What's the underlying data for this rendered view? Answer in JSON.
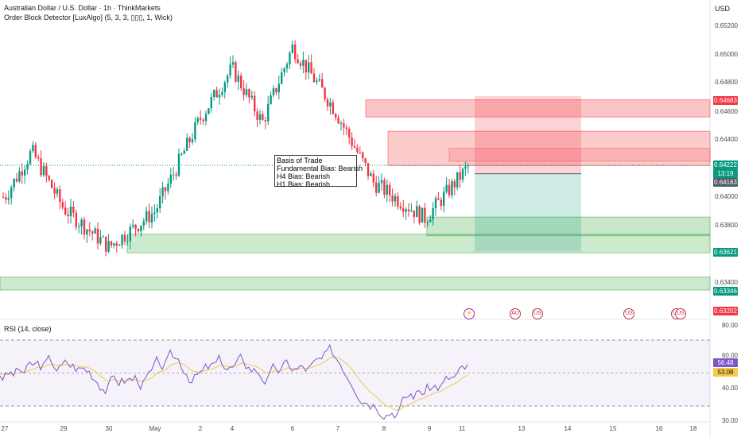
{
  "header": {
    "title": "Australian Dollar / U.S. Dollar · 1h · ThinkMarkets",
    "indicator": "Order Block Detector [LuxAlgo] (5, 3, 3, ▯▯▯, 1, Wick)",
    "currency": "USD"
  },
  "annotation": {
    "line1": "Basis of Trade",
    "line2": "Fundamental Bias: Bearish",
    "line3": "H4 Bias: Bearish",
    "line4": "H1 Bias: Bearish"
  },
  "rsi": {
    "label": "RSI (14, close)",
    "value_label": "56.48",
    "ma_label": "53.08",
    "axis_labels": [
      "80.00",
      "60.00",
      "40.00",
      "30.00"
    ]
  },
  "price_axis": {
    "labels": [
      "0.65200",
      "0.65000",
      "0.64800",
      "0.64600",
      "0.64400",
      "0.64000",
      "0.63800",
      "0.63400"
    ]
  },
  "price_badges": {
    "top": "0.64683",
    "current": "0.64222",
    "countdown": "13:19",
    "entry": "0.64163",
    "ob_bull1": "0.63621",
    "ob_bull2": "0.63346",
    "low": "0.63202"
  },
  "time_axis": {
    "labels": [
      "27",
      "29",
      "30",
      "May",
      "2",
      "4",
      "6",
      "7",
      "8",
      "9",
      "11",
      "13",
      "14",
      "15",
      "16",
      "18"
    ]
  },
  "calendar_icons": [
    "event-icon",
    "flag-au-icon",
    "flag-us-icon",
    "flag-us-icon",
    "flag-us-icon"
  ],
  "colors": {
    "bull": "#089981",
    "bear": "#f23645",
    "bear_zone": "#f77c80",
    "bull_zone": "#4caf50",
    "rsi_line": "#7e57c2",
    "rsi_ma": "#f7c748"
  },
  "chart_data": {
    "type": "candlestick",
    "symbol": "AUDUSD",
    "timeframe": "1h",
    "y_range": [
      0.632,
      0.6525
    ],
    "current_price": 0.64222,
    "close_path": [
      {
        "t": "27",
        "price": 0.64
      },
      {
        "t": "28",
        "price": 0.6432
      },
      {
        "t": "29",
        "price": 0.6392
      },
      {
        "t": "30",
        "price": 0.6365
      },
      {
        "t": "May",
        "price": 0.639
      },
      {
        "t": "2",
        "price": 0.6455
      },
      {
        "t": "4",
        "price": 0.649
      },
      {
        "t": "5",
        "price": 0.6452
      },
      {
        "t": "6",
        "price": 0.6505
      },
      {
        "t": "7",
        "price": 0.6462
      },
      {
        "t": "8",
        "price": 0.641
      },
      {
        "t": "9",
        "price": 0.6385
      },
      {
        "t": "11",
        "price": 0.6422
      }
    ],
    "order_blocks": {
      "bearish": [
        [
          0.6456,
          0.6468
        ],
        [
          0.6422,
          0.6446
        ]
      ],
      "bullish": [
        [
          0.6362,
          0.6378
        ],
        [
          0.6373,
          0.6386
        ],
        [
          0.6335,
          0.6343
        ]
      ]
    },
    "trade": {
      "entry": 0.64163,
      "stop_zone": [
        0.64163,
        0.64683
      ],
      "target_zone": [
        0.6362,
        0.64163
      ]
    }
  }
}
